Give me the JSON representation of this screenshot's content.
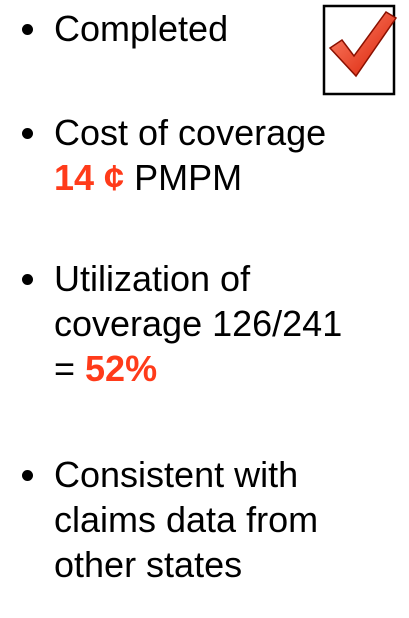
{
  "bullets": [
    {
      "lines": [
        [
          {
            "text": "Completed"
          }
        ]
      ]
    },
    {
      "lines": [
        [
          {
            "text": "Cost of coverage"
          }
        ],
        [
          {
            "text": "14 ¢",
            "highlight": true
          },
          {
            "text": " PMPM"
          }
        ]
      ]
    },
    {
      "lines": [
        [
          {
            "text": "Utilization of"
          }
        ],
        [
          {
            "text": "coverage 126/241"
          }
        ],
        [
          {
            "text": "= "
          },
          {
            "text": "52%",
            "highlight": true
          }
        ]
      ]
    },
    {
      "lines": [
        [
          {
            "text": "Consistent with"
          }
        ],
        [
          {
            "text": "claims data from"
          }
        ],
        [
          {
            "text": "other states"
          }
        ]
      ]
    }
  ]
}
